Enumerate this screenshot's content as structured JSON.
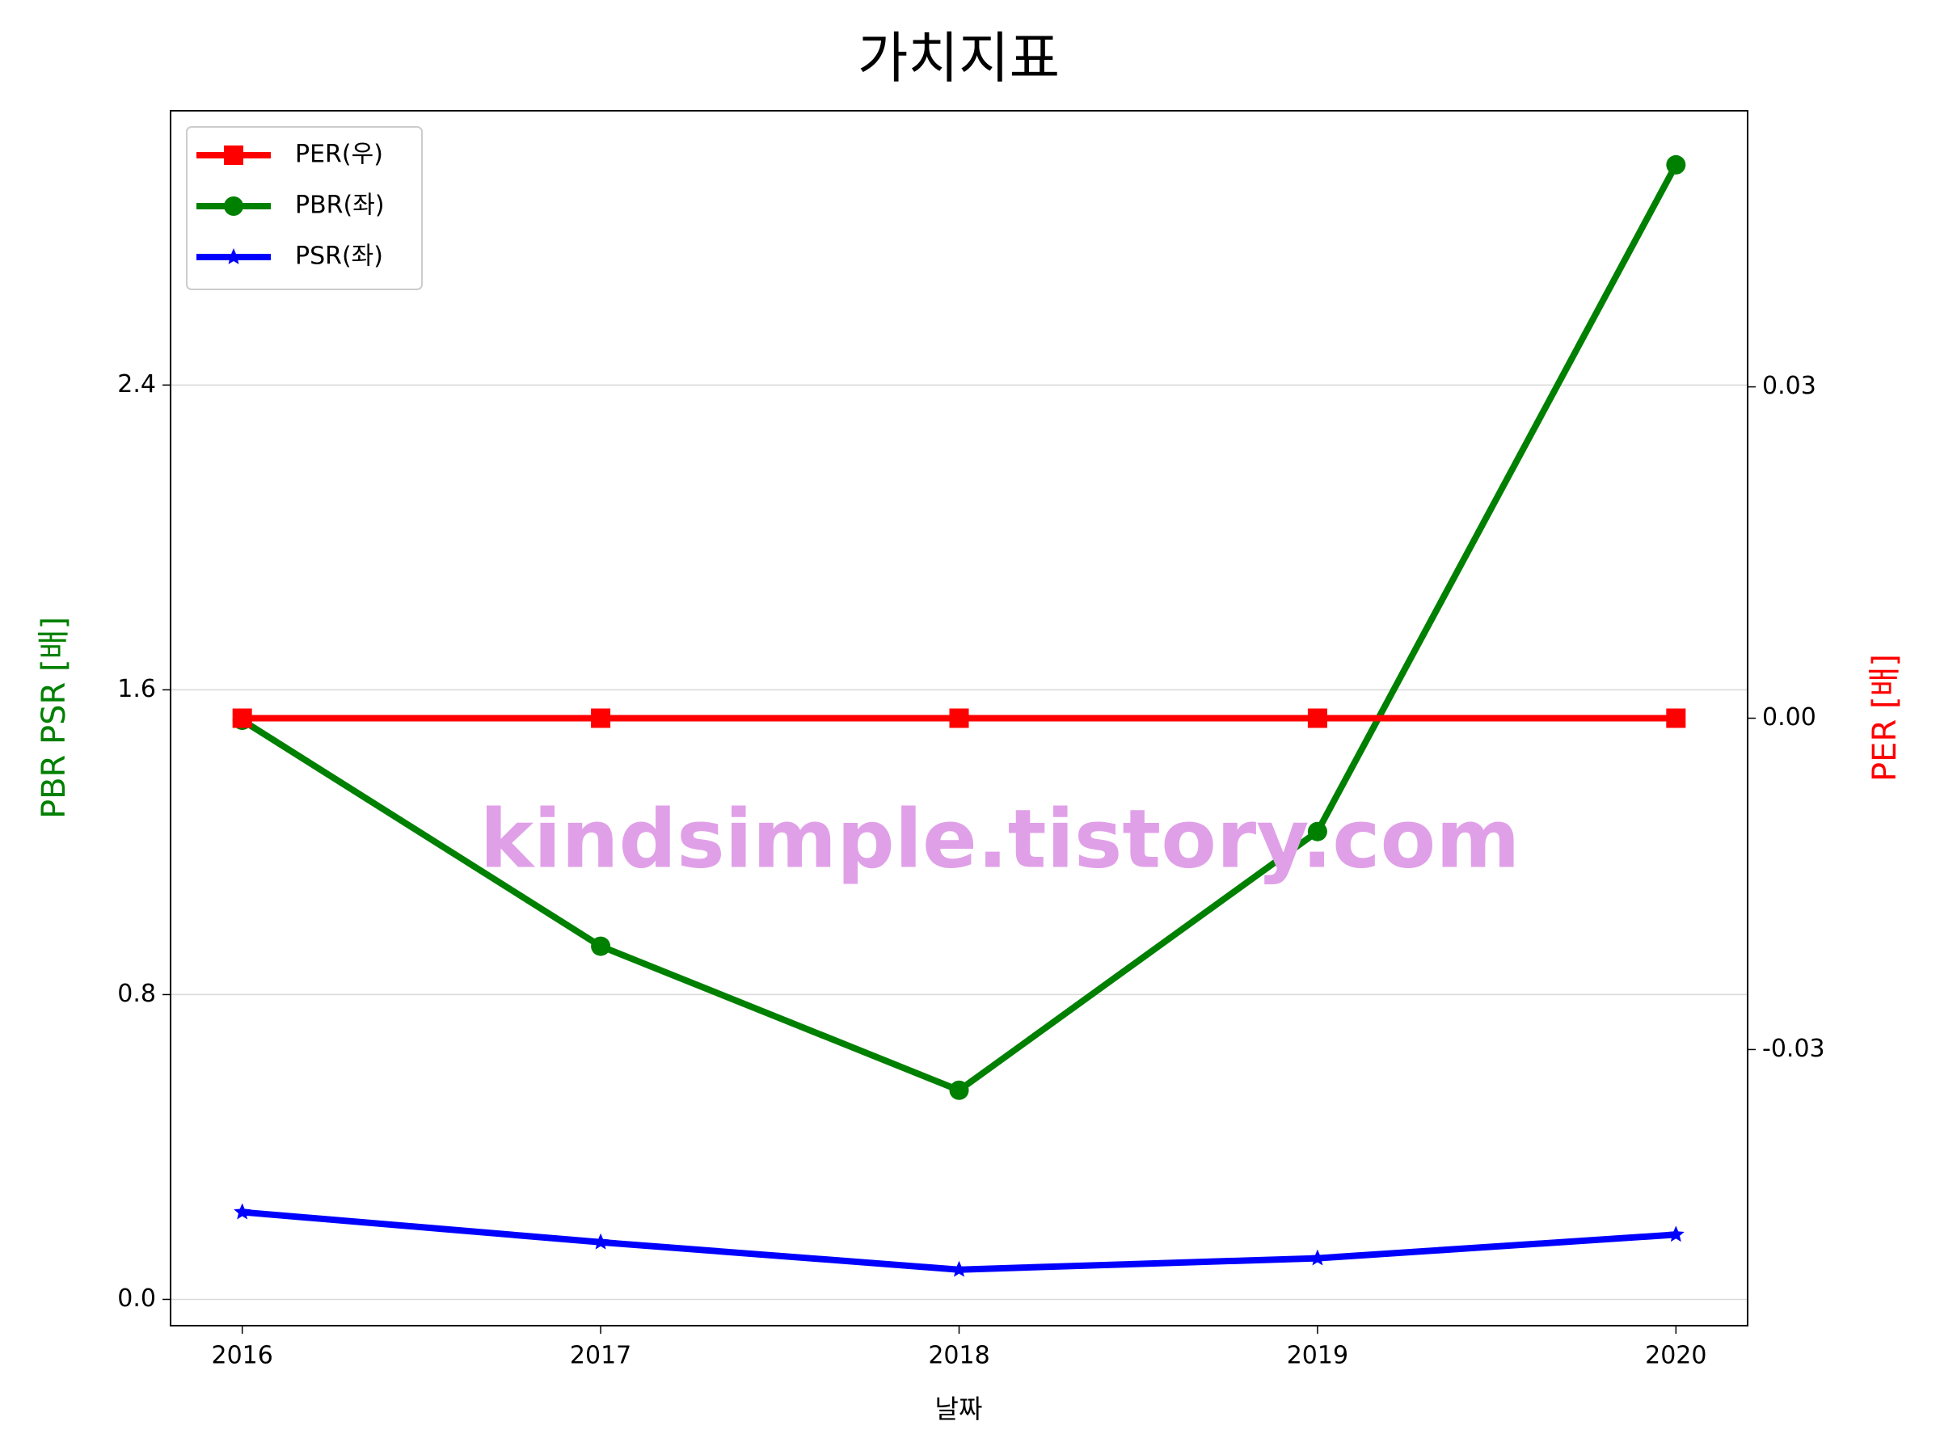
{
  "chart_data": {
    "type": "line",
    "title": "가치지표",
    "xlabel": "날짜",
    "ylabel": "PBR PSR [배]",
    "y2label": "PER [배]",
    "ylabel_color": "green",
    "y2label_color": "red",
    "watermark": "kindsimple.tistory.com",
    "x": [
      2016,
      2017,
      2018,
      2019,
      2020
    ],
    "xlim": [
      2015.8,
      2020.2
    ],
    "xticks": [
      2016,
      2017,
      2018,
      2019,
      2020
    ],
    "ylim": [
      -0.069,
      3.12
    ],
    "yticks": [
      {
        "value": 0,
        "label": "0.0"
      },
      0.8,
      1.6,
      2.4
    ],
    "y2lim": [
      -0.055,
      0.055
    ],
    "y2ticks": [
      -0.03,
      {
        "value": 0,
        "label": "0.00"
      },
      0.03
    ],
    "grid": true,
    "legend": "upper left",
    "series": [
      {
        "name": "PER(우)",
        "color": "#ff0000",
        "marker": "square",
        "axis": "y2",
        "values": [
          0,
          0,
          0,
          0,
          0
        ]
      },
      {
        "name": "PBR(좌)",
        "color": "#008000",
        "marker": "circle",
        "values": [
          1.52,
          0.927,
          0.549,
          1.228,
          2.978
        ]
      },
      {
        "name": "PSR(좌)",
        "color": "#0000ff",
        "marker": "star",
        "values": [
          0.229,
          0.15,
          0.078,
          0.108,
          0.17
        ]
      }
    ]
  }
}
